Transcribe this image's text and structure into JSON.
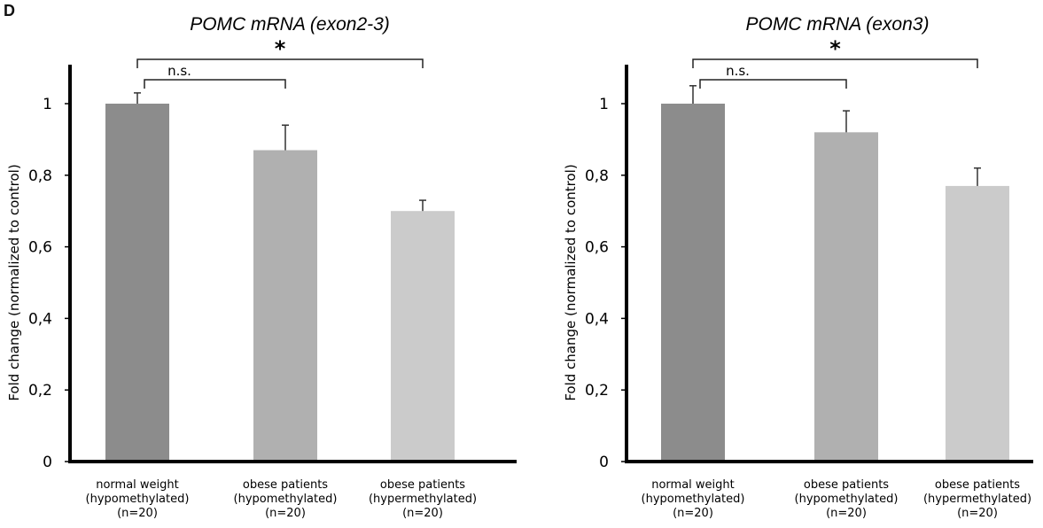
{
  "panel_label": "D",
  "chart_data": [
    {
      "type": "bar",
      "title": "POMC mRNA (exon2-3)",
      "ylabel": "Fold change (normalized to control)",
      "xlabel": "",
      "categories": [
        [
          "normal weight",
          "(hypomethylated)",
          "(n=20)"
        ],
        [
          "obese patients",
          "(hypomethylated)",
          "(n=20)"
        ],
        [
          "obese patients",
          "(hypermethylated)",
          "(n=20)"
        ]
      ],
      "values": [
        1.0,
        0.87,
        0.7
      ],
      "errors": [
        0.03,
        0.07,
        0.03
      ],
      "colors": [
        "#8c8c8c",
        "#b0b0b0",
        "#cbcbcb"
      ],
      "ylim": [
        0,
        1
      ],
      "yticks": [
        "0",
        "0,2",
        "0,4",
        "0,6",
        "0,8",
        "1"
      ],
      "grid": false,
      "annotations": [
        {
          "from": 0,
          "to": 1,
          "label": "n.s."
        },
        {
          "from": 0,
          "to": 2,
          "label": "*"
        }
      ]
    },
    {
      "type": "bar",
      "title": "POMC mRNA (exon3)",
      "ylabel": "Fold change (normalized to control)",
      "xlabel": "",
      "categories": [
        [
          "normal weight",
          "(hypomethylated)",
          "(n=20)"
        ],
        [
          "obese patients",
          "(hypomethylated)",
          "(n=20)"
        ],
        [
          "obese patients",
          "(hypermethylated)",
          "(n=20)"
        ]
      ],
      "values": [
        1.0,
        0.92,
        0.77
      ],
      "errors": [
        0.05,
        0.06,
        0.05
      ],
      "colors": [
        "#8c8c8c",
        "#b0b0b0",
        "#cbcbcb"
      ],
      "ylim": [
        0,
        1
      ],
      "yticks": [
        "0",
        "0,2",
        "0,4",
        "0,6",
        "0,8",
        "1"
      ],
      "grid": false,
      "annotations": [
        {
          "from": 0,
          "to": 1,
          "label": "n.s."
        },
        {
          "from": 0,
          "to": 2,
          "label": "*"
        }
      ]
    }
  ]
}
